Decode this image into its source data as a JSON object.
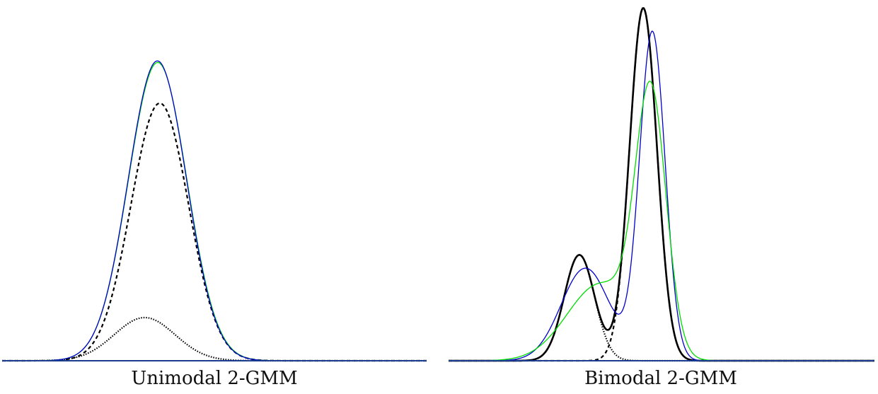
{
  "captions": {
    "left": "Unimodal 2-GMM",
    "right": "Bimodal 2-GMM"
  },
  "colors": {
    "truth": "#000000",
    "fit_green": "#00dd00",
    "fit_blue": "#0000cc",
    "baseline": "#1a3d8f"
  },
  "chart_data": [
    {
      "type": "line",
      "title": "Unimodal 2-GMM",
      "xlim": [
        -4,
        10
      ],
      "ylim": [
        0,
        0.5
      ],
      "grid": false,
      "components": [
        {
          "name": "",
          "style": "dotted",
          "weight": 0.15,
          "mean": 0.7,
          "sd": 1.0
        },
        {
          "name": "",
          "style": "dashed",
          "weight": 0.85,
          "mean": 1.2,
          "sd": 0.95
        }
      ],
      "series": [
        {
          "name": "",
          "style": "solid-green",
          "weight": 1.0,
          "mean": 1.13,
          "sd": 0.965
        },
        {
          "name": "",
          "style": "solid-blue",
          "weight": 1.0,
          "mean": 1.12,
          "sd": 0.96
        }
      ]
    },
    {
      "type": "line",
      "title": "Bimodal 2-GMM",
      "xlim": [
        -4,
        10
      ],
      "ylim": [
        0,
        0.68
      ],
      "grid": false,
      "components": [
        {
          "name": "",
          "style": "dotted",
          "weight": 0.25,
          "mean": 0.3,
          "sd": 0.5
        },
        {
          "name": "",
          "style": "dashed",
          "weight": 0.75,
          "mean": 2.4,
          "sd": 0.45
        }
      ],
      "truth": {
        "name": "",
        "style": "solid-black-thick",
        "mixture": true
      },
      "series": [
        {
          "name": "",
          "style": "solid-blue",
          "components": [
            {
              "weight": 0.35,
              "mean": 0.5,
              "sd": 0.8
            },
            {
              "weight": 0.65,
              "mean": 2.7,
              "sd": 0.42
            }
          ]
        },
        {
          "name": "",
          "style": "solid-green",
          "components": [
            {
              "weight": 0.4,
              "mean": 1.0,
              "sd": 1.1
            },
            {
              "weight": 0.6,
              "mean": 2.65,
              "sd": 0.5
            }
          ]
        }
      ]
    }
  ]
}
